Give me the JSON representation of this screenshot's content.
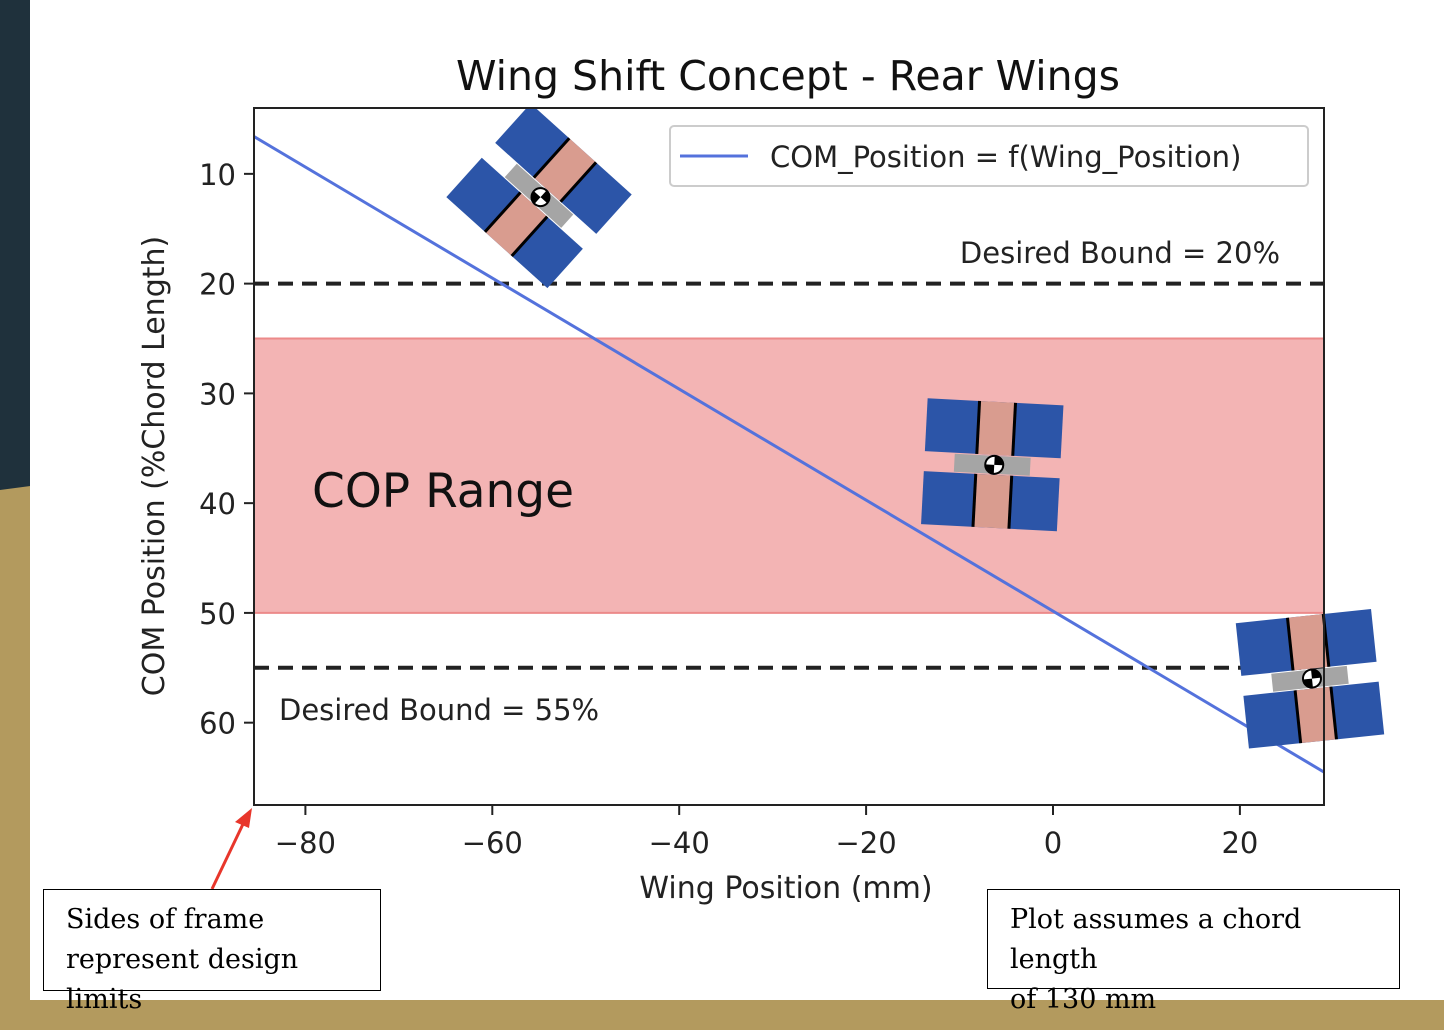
{
  "theme": {
    "frame_dark": "#1f313c",
    "frame_gold": "#b39a5e",
    "series_color": "#5472dc",
    "band_color": "#f3b4b4",
    "band_edge": "#ec8a8a",
    "wing_blue": "#2c55a8",
    "wing_pink": "#d99c8f",
    "wing_gray": "#a5a5a5",
    "arrow_color": "#e8362b"
  },
  "chart_data": {
    "type": "line",
    "title": "Wing Shift Concept - Rear Wings",
    "xlabel": "Wing Position (mm)",
    "ylabel": "COM Position (%Chord Length)",
    "xlim": [
      -85.5,
      29
    ],
    "ylim": [
      67.5,
      4
    ],
    "y_inverted": true,
    "xticks": [
      -80,
      -60,
      -40,
      -20,
      0,
      20
    ],
    "xtick_labels": [
      "−80",
      "−60",
      "−40",
      "−20",
      "0",
      "20"
    ],
    "yticks": [
      10,
      20,
      30,
      40,
      50,
      60
    ],
    "ytick_labels": [
      "10",
      "20",
      "30",
      "40",
      "50",
      "60"
    ],
    "grid": false,
    "legend": "top-right",
    "series": [
      {
        "name": "COM_Position = f(Wing_Position)",
        "x": [
          -85.5,
          29
        ],
        "y": [
          6.6,
          64.5
        ]
      }
    ],
    "band": {
      "label": "COP Range",
      "y_from": 25,
      "y_to": 50
    },
    "hlines": [
      {
        "y": 20,
        "label": "Desired Bound = 20%",
        "style": "dashed"
      },
      {
        "y": 55,
        "label": "Desired Bound = 55%",
        "style": "dashed"
      }
    ],
    "wing_icons": [
      {
        "name": "wing-icon-forward",
        "x": -55,
        "y": 12,
        "rotation": 42
      },
      {
        "name": "wing-icon-middle",
        "x": -6.5,
        "y": 36.5,
        "rotation": 3
      },
      {
        "name": "wing-icon-aft",
        "x": 27.5,
        "y": 56,
        "rotation": -6
      }
    ]
  },
  "notes": {
    "left": "Sides of frame\nrepresent design limits",
    "right": "Plot assumes a chord length\nof 130 mm"
  }
}
